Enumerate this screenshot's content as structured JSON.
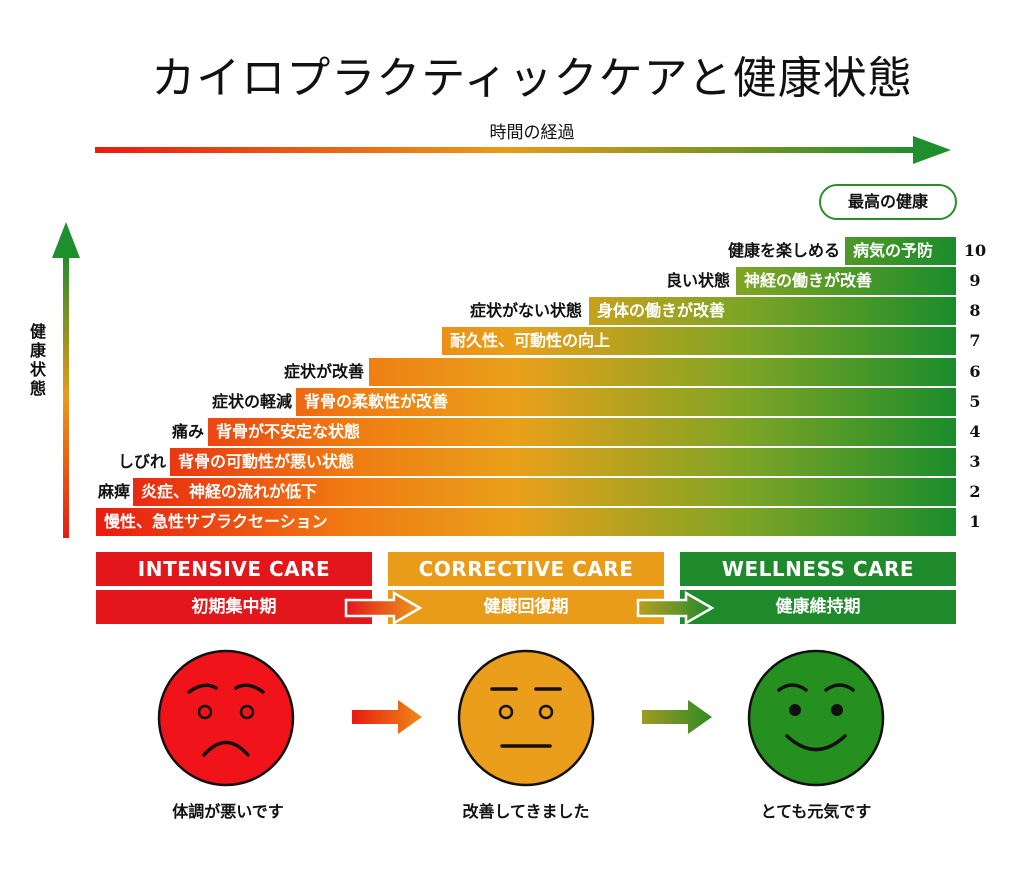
{
  "title": "カイロプラクティックケアと健康状態",
  "time_axis_label": "時間の経過",
  "health_axis_label": [
    "健",
    "康",
    "状",
    "態"
  ],
  "peak_label": "最高の健康",
  "levels": [
    {
      "number": "1",
      "bar_text": "慢性、急性サブラクセーション",
      "state": ""
    },
    {
      "number": "2",
      "bar_text": "炎症、神経の流れが低下",
      "state": "麻痺"
    },
    {
      "number": "3",
      "bar_text": "背骨の可動性が悪い状態",
      "state": "しびれ"
    },
    {
      "number": "4",
      "bar_text": "背骨が不安定な状態",
      "state": "痛み"
    },
    {
      "number": "5",
      "bar_text": "背骨の柔軟性が改善",
      "state": "症状の軽減"
    },
    {
      "number": "6",
      "bar_text": "",
      "state": "症状が改善"
    },
    {
      "number": "7",
      "bar_text": "耐久性、可動性の向上",
      "state": ""
    },
    {
      "number": "8",
      "bar_text": "身体の働きが改善",
      "state": "症状がない状態"
    },
    {
      "number": "9",
      "bar_text": "神経の働きが改善",
      "state": "良い状態"
    },
    {
      "number": "10",
      "bar_text": "病気の予防",
      "state": "健康を楽しめる"
    }
  ],
  "phases": [
    {
      "name": "INTENSIVE CARE",
      "jp": "初期集中期",
      "color": "#e3161b"
    },
    {
      "name": "CORRECTIVE CARE",
      "jp": "健康回復期",
      "color": "#e99b1a"
    },
    {
      "name": "WELLNESS CARE",
      "jp": "健康維持期",
      "color": "#1e8a2b"
    }
  ],
  "faces": [
    {
      "mood": "sad-face",
      "color": "#f0141a",
      "caption": "体調が悪いです"
    },
    {
      "mood": "neutral-face",
      "color": "#eb9e1c",
      "caption": "改善してきました"
    },
    {
      "mood": "happy-face",
      "color": "#25901f",
      "caption": "とても元気です"
    }
  ]
}
